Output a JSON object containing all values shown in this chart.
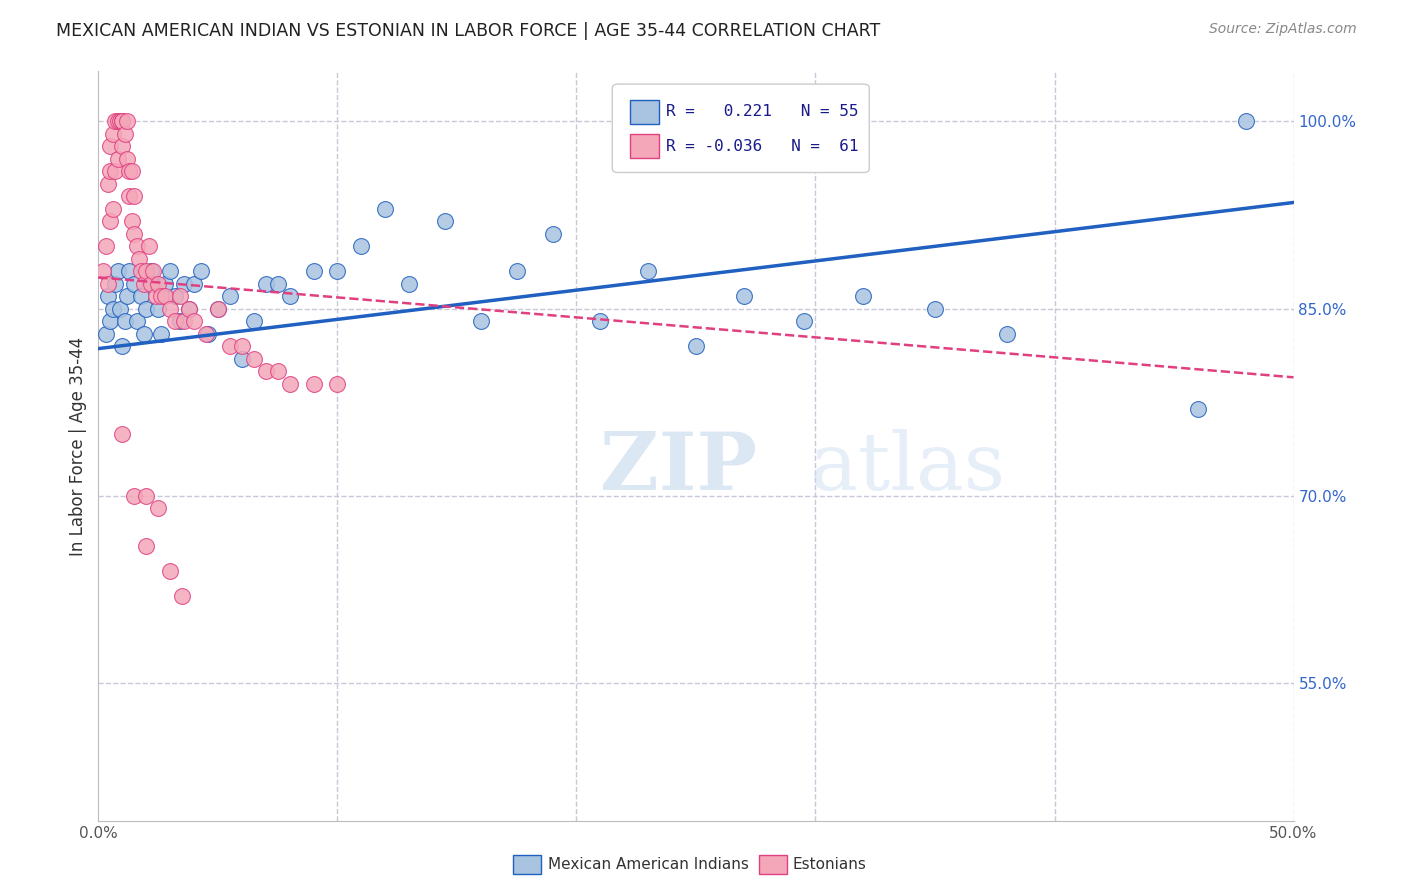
{
  "title": "MEXICAN AMERICAN INDIAN VS ESTONIAN IN LABOR FORCE | AGE 35-44 CORRELATION CHART",
  "source": "Source: ZipAtlas.com",
  "ylabel": "In Labor Force | Age 35-44",
  "xlim": [
    0.0,
    0.5
  ],
  "ylim": [
    0.44,
    1.04
  ],
  "xticks": [
    0.0,
    0.1,
    0.2,
    0.3,
    0.4,
    0.5
  ],
  "xtick_labels": [
    "0.0%",
    "",
    "",
    "",
    "",
    "50.0%"
  ],
  "yticks_right": [
    0.55,
    0.7,
    0.85,
    1.0
  ],
  "ytick_labels_right": [
    "55.0%",
    "70.0%",
    "85.0%",
    "100.0%"
  ],
  "blue_R": 0.221,
  "blue_N": 55,
  "pink_R": -0.036,
  "pink_N": 61,
  "watermark": "ZIPatlas",
  "blue_color": "#a8c4e0",
  "pink_color": "#f4a7b9",
  "blue_line_color": "#2060c0",
  "pink_line_color": "#e04080",
  "grid_color": "#c8c8d8",
  "blue_line_x0": 0.0,
  "blue_line_y0": 0.818,
  "blue_line_x1": 0.5,
  "blue_line_y1": 0.935,
  "pink_line_x0": 0.0,
  "pink_line_y0": 0.875,
  "pink_line_x1": 0.5,
  "pink_line_y1": 0.795,
  "blue_scatter_x": [
    0.003,
    0.004,
    0.005,
    0.006,
    0.007,
    0.008,
    0.009,
    0.01,
    0.011,
    0.012,
    0.013,
    0.015,
    0.016,
    0.018,
    0.019,
    0.02,
    0.022,
    0.023,
    0.025,
    0.026,
    0.028,
    0.03,
    0.032,
    0.034,
    0.036,
    0.038,
    0.04,
    0.043,
    0.046,
    0.05,
    0.055,
    0.06,
    0.065,
    0.07,
    0.075,
    0.08,
    0.09,
    0.1,
    0.11,
    0.12,
    0.13,
    0.145,
    0.16,
    0.175,
    0.19,
    0.21,
    0.23,
    0.25,
    0.27,
    0.295,
    0.32,
    0.35,
    0.38,
    0.46,
    0.48
  ],
  "blue_scatter_y": [
    0.83,
    0.86,
    0.84,
    0.85,
    0.87,
    0.88,
    0.85,
    0.82,
    0.84,
    0.86,
    0.88,
    0.87,
    0.84,
    0.86,
    0.83,
    0.85,
    0.88,
    0.87,
    0.85,
    0.83,
    0.87,
    0.88,
    0.86,
    0.84,
    0.87,
    0.85,
    0.87,
    0.88,
    0.83,
    0.85,
    0.86,
    0.81,
    0.84,
    0.87,
    0.87,
    0.86,
    0.88,
    0.88,
    0.9,
    0.93,
    0.87,
    0.92,
    0.84,
    0.88,
    0.91,
    0.84,
    0.88,
    0.82,
    0.86,
    0.84,
    0.86,
    0.85,
    0.83,
    0.77,
    1.0
  ],
  "pink_scatter_x": [
    0.002,
    0.003,
    0.004,
    0.004,
    0.005,
    0.005,
    0.005,
    0.006,
    0.006,
    0.007,
    0.007,
    0.008,
    0.008,
    0.009,
    0.01,
    0.01,
    0.01,
    0.011,
    0.012,
    0.012,
    0.013,
    0.013,
    0.014,
    0.014,
    0.015,
    0.015,
    0.016,
    0.017,
    0.018,
    0.019,
    0.02,
    0.021,
    0.022,
    0.023,
    0.024,
    0.025,
    0.026,
    0.028,
    0.03,
    0.032,
    0.034,
    0.036,
    0.038,
    0.04,
    0.045,
    0.05,
    0.055,
    0.06,
    0.065,
    0.07,
    0.075,
    0.08,
    0.09,
    0.1,
    0.01,
    0.015,
    0.02,
    0.025,
    0.02,
    0.03,
    0.035
  ],
  "pink_scatter_y": [
    0.88,
    0.9,
    0.87,
    0.95,
    0.92,
    0.96,
    0.98,
    0.93,
    0.99,
    0.96,
    1.0,
    0.97,
    1.0,
    1.0,
    0.98,
    1.0,
    1.0,
    0.99,
    0.97,
    1.0,
    0.96,
    0.94,
    0.96,
    0.92,
    0.94,
    0.91,
    0.9,
    0.89,
    0.88,
    0.87,
    0.88,
    0.9,
    0.87,
    0.88,
    0.86,
    0.87,
    0.86,
    0.86,
    0.85,
    0.84,
    0.86,
    0.84,
    0.85,
    0.84,
    0.83,
    0.85,
    0.82,
    0.82,
    0.81,
    0.8,
    0.8,
    0.79,
    0.79,
    0.79,
    0.75,
    0.7,
    0.7,
    0.69,
    0.66,
    0.64,
    0.62
  ]
}
